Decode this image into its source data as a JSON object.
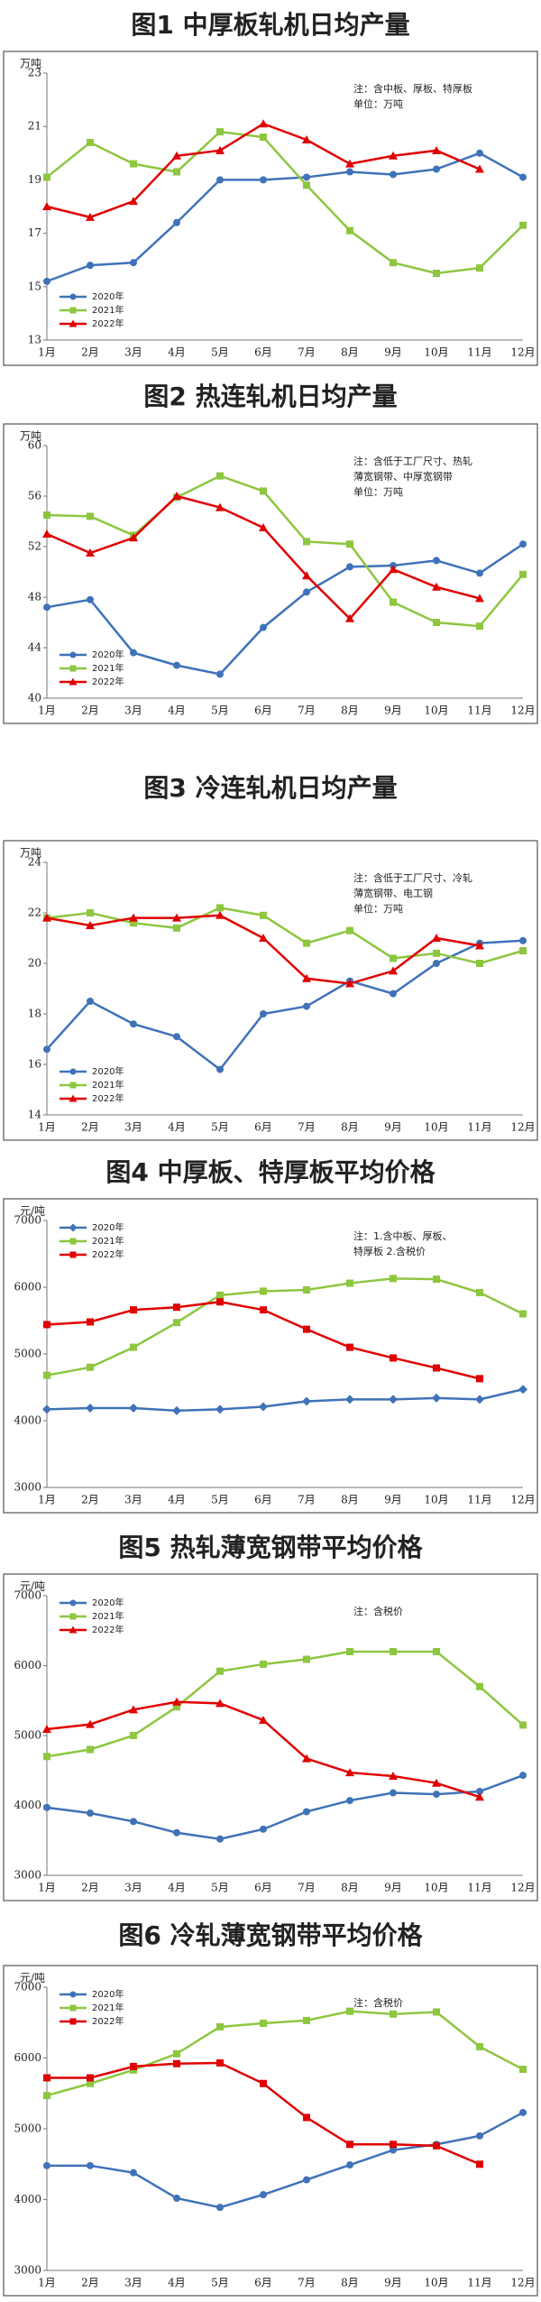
{
  "chart_data": [
    {
      "type": "line",
      "title": "图1  中厚板轧机日均产量",
      "unit": "万吨",
      "note": [
        "注：含中板、厚板、特厚板",
        "单位：万吨"
      ],
      "legend": "lower left",
      "categories": [
        "1月",
        "2月",
        "3月",
        "4月",
        "5月",
        "6月",
        "7月",
        "8月",
        "9月",
        "10月",
        "11月",
        "12月"
      ],
      "ylim": [
        13,
        23
      ],
      "yticks": [
        13,
        15,
        17,
        19,
        21,
        23
      ],
      "series": [
        {
          "name": "2020年",
          "color": "#3f72b8",
          "marker": "circle",
          "values": [
            15.2,
            15.8,
            15.9,
            17.4,
            19.0,
            19.0,
            19.1,
            19.3,
            19.2,
            19.4,
            20.0,
            19.1
          ]
        },
        {
          "name": "2021年",
          "color": "#8dc63f",
          "marker": "square",
          "values": [
            19.1,
            20.4,
            19.6,
            19.3,
            20.8,
            20.6,
            18.8,
            17.1,
            15.9,
            15.5,
            15.7,
            17.3
          ]
        },
        {
          "name": "2022年",
          "color": "#e00000",
          "marker": "triangle",
          "values": [
            18.0,
            17.6,
            18.2,
            19.9,
            20.1,
            21.1,
            20.5,
            19.6,
            19.9,
            20.1,
            19.4,
            null
          ]
        }
      ]
    },
    {
      "type": "line",
      "title": "图2  热连轧机日均产量",
      "unit": "万吨",
      "note": [
        "注：含低于工厂尺寸、热轧",
        "薄宽钢带、中厚宽钢带",
        "单位：万吨"
      ],
      "legend": "lower left",
      "categories": [
        "1月",
        "2月",
        "3月",
        "4月",
        "5月",
        "6月",
        "7月",
        "8月",
        "9月",
        "10月",
        "11月",
        "12月"
      ],
      "ylim": [
        40,
        60
      ],
      "yticks": [
        40,
        44,
        48,
        52,
        56,
        60
      ],
      "series": [
        {
          "name": "2020年",
          "color": "#3f72b8",
          "marker": "circle",
          "values": [
            47.2,
            47.8,
            43.6,
            42.6,
            41.9,
            45.6,
            48.4,
            50.4,
            50.5,
            50.9,
            49.9,
            52.2
          ]
        },
        {
          "name": "2021年",
          "color": "#8dc63f",
          "marker": "square",
          "values": [
            54.5,
            54.4,
            52.9,
            55.9,
            57.6,
            56.4,
            52.4,
            52.2,
            47.6,
            46.0,
            45.7,
            49.8
          ]
        },
        {
          "name": "2022年",
          "color": "#e00000",
          "marker": "triangle",
          "values": [
            53.0,
            51.5,
            52.7,
            56.0,
            55.1,
            53.5,
            49.7,
            46.3,
            50.2,
            48.8,
            47.9,
            null
          ]
        }
      ]
    },
    {
      "type": "line",
      "title": "图3  冷连轧机日均产量",
      "unit": "万吨",
      "note": [
        "注：含低于工厂尺寸、冷轧",
        "薄宽钢带、电工钢",
        "单位：万吨"
      ],
      "legend": "lower left",
      "categories": [
        "1月",
        "2月",
        "3月",
        "4月",
        "5月",
        "6月",
        "7月",
        "8月",
        "9月",
        "10月",
        "11月",
        "12月"
      ],
      "ylim": [
        14,
        24
      ],
      "yticks": [
        14,
        16,
        18,
        20,
        22,
        24
      ],
      "series": [
        {
          "name": "2020年",
          "color": "#3f72b8",
          "marker": "circle",
          "values": [
            16.6,
            18.5,
            17.6,
            17.1,
            15.8,
            18.0,
            18.3,
            19.3,
            18.8,
            20.0,
            20.8,
            20.9
          ]
        },
        {
          "name": "2021年",
          "color": "#8dc63f",
          "marker": "square",
          "values": [
            21.8,
            22.0,
            21.6,
            21.4,
            22.2,
            21.9,
            20.8,
            21.3,
            20.2,
            20.4,
            20.0,
            20.5
          ]
        },
        {
          "name": "2022年",
          "color": "#e00000",
          "marker": "triangle",
          "values": [
            21.8,
            21.5,
            21.8,
            21.8,
            21.9,
            21.0,
            19.4,
            19.2,
            19.7,
            21.0,
            20.7,
            null
          ]
        }
      ]
    },
    {
      "type": "line",
      "title": "图4  中厚板、特厚板平均价格",
      "unit": "元/吨",
      "note": [
        "注：1.含中板、厚板、",
        "特厚板  2.含税价"
      ],
      "legend": "upper left",
      "categories": [
        "1月",
        "2月",
        "3月",
        "4月",
        "5月",
        "6月",
        "7月",
        "8月",
        "9月",
        "10月",
        "11月",
        "12月"
      ],
      "ylim": [
        3000,
        7000
      ],
      "yticks": [
        3000,
        4000,
        5000,
        6000,
        7000
      ],
      "series": [
        {
          "name": "2020年",
          "color": "#3f72b8",
          "marker": "diamond",
          "values": [
            4170,
            4190,
            4190,
            4150,
            4170,
            4210,
            4290,
            4320,
            4320,
            4340,
            4320,
            4470
          ]
        },
        {
          "name": "2021年",
          "color": "#8dc63f",
          "marker": "square",
          "values": [
            4680,
            4800,
            5100,
            5470,
            5880,
            5940,
            5960,
            6060,
            6130,
            6120,
            5920,
            5600
          ]
        },
        {
          "name": "2022年",
          "color": "#e00000",
          "marker": "square",
          "values": [
            5440,
            5480,
            5660,
            5700,
            5780,
            5660,
            5370,
            5100,
            4940,
            4790,
            4630,
            null
          ]
        }
      ]
    },
    {
      "type": "line",
      "title": "图5  热轧薄宽钢带平均价格",
      "unit": "元/吨",
      "note": [
        "注：含税价"
      ],
      "legend": "upper left",
      "categories": [
        "1月",
        "2月",
        "3月",
        "4月",
        "5月",
        "6月",
        "7月",
        "8月",
        "9月",
        "10月",
        "11月",
        "12月"
      ],
      "ylim": [
        3000,
        7000
      ],
      "yticks": [
        3000,
        4000,
        5000,
        6000,
        7000
      ],
      "series": [
        {
          "name": "2020年",
          "color": "#3f72b8",
          "marker": "circle",
          "values": [
            3970,
            3890,
            3770,
            3610,
            3520,
            3660,
            3910,
            4070,
            4180,
            4160,
            4200,
            4430
          ]
        },
        {
          "name": "2021年",
          "color": "#8dc63f",
          "marker": "square",
          "values": [
            4700,
            4800,
            5000,
            5410,
            5920,
            6020,
            6090,
            6200,
            6200,
            6200,
            5700,
            5150
          ]
        },
        {
          "name": "2022年",
          "color": "#e00000",
          "marker": "triangle",
          "values": [
            5090,
            5160,
            5370,
            5480,
            5460,
            5220,
            4670,
            4470,
            4420,
            4320,
            4120,
            null
          ]
        }
      ]
    },
    {
      "type": "line",
      "title": "图6 冷轧薄宽钢带平均价格",
      "unit": "元/吨",
      "note": [
        "注：含税价"
      ],
      "legend": "upper left",
      "categories": [
        "1月",
        "2月",
        "3月",
        "4月",
        "5月",
        "6月",
        "7月",
        "8月",
        "9月",
        "10月",
        "11月",
        "12月"
      ],
      "ylim": [
        3000,
        7000
      ],
      "yticks": [
        3000,
        4000,
        5000,
        6000,
        7000
      ],
      "series": [
        {
          "name": "2020年",
          "color": "#3f72b8",
          "marker": "circle",
          "values": [
            4480,
            4480,
            4380,
            4020,
            3890,
            4070,
            4280,
            4490,
            4700,
            4780,
            4900,
            5230
          ]
        },
        {
          "name": "2021年",
          "color": "#8dc63f",
          "marker": "square",
          "values": [
            5470,
            5640,
            5830,
            6060,
            6440,
            6490,
            6530,
            6660,
            6620,
            6650,
            6160,
            5840
          ]
        },
        {
          "name": "2022年",
          "color": "#e00000",
          "marker": "square",
          "values": [
            5720,
            5720,
            5880,
            5920,
            5930,
            5640,
            5160,
            4780,
            4780,
            4760,
            4500,
            null
          ]
        }
      ]
    }
  ]
}
